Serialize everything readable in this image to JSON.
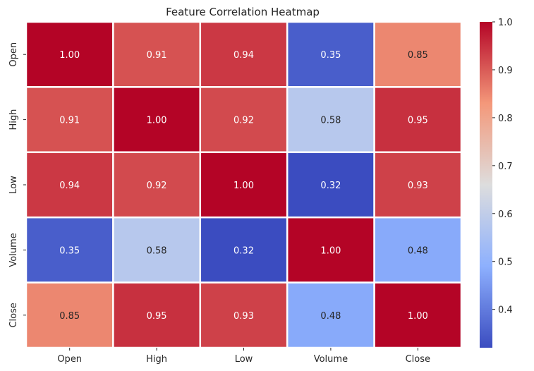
{
  "chart_data": {
    "type": "heatmap",
    "title": "Feature Correlation Heatmap",
    "xlabel": "",
    "ylabel": "",
    "x_categories": [
      "Open",
      "High",
      "Low",
      "Volume",
      "Close"
    ],
    "y_categories": [
      "Open",
      "High",
      "Low",
      "Volume",
      "Close"
    ],
    "values": [
      [
        1.0,
        0.91,
        0.94,
        0.35,
        0.85
      ],
      [
        0.91,
        1.0,
        0.92,
        0.58,
        0.95
      ],
      [
        0.94,
        0.92,
        1.0,
        0.32,
        0.93
      ],
      [
        0.35,
        0.58,
        0.32,
        1.0,
        0.48
      ],
      [
        0.85,
        0.95,
        0.93,
        0.48,
        1.0
      ]
    ],
    "annotation_format": "0.00",
    "colormap": "coolwarm",
    "colorbar": {
      "range": [
        0.32,
        1.0
      ],
      "ticks": [
        0.4,
        0.5,
        0.6,
        0.7,
        0.8,
        0.9,
        1.0
      ],
      "tick_labels": [
        "0.4",
        "0.5",
        "0.6",
        "0.7",
        "0.8",
        "0.9",
        "1.0"
      ]
    },
    "cell_separator_color": "#ffffff"
  }
}
